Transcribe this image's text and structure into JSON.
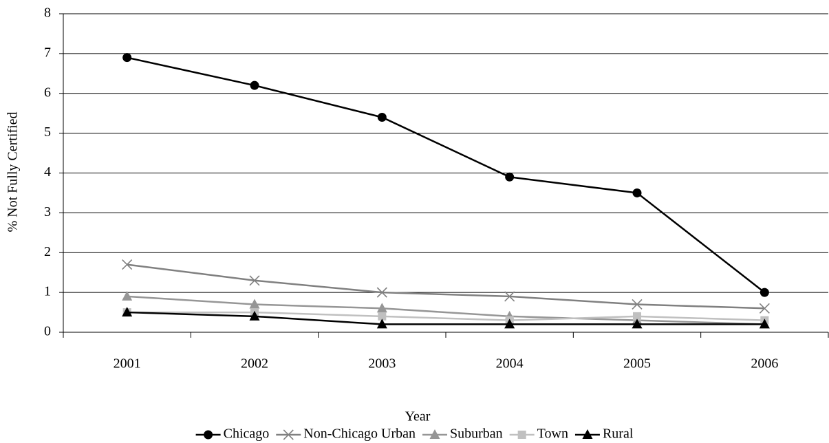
{
  "chart_data": {
    "type": "line",
    "x_label": "Year",
    "y_label": "% Not Fully Certified",
    "categories": [
      "2001",
      "2002",
      "2003",
      "2004",
      "2005",
      "2006"
    ],
    "series": [
      {
        "name": "Chicago",
        "color": "#000000",
        "marker": "circle",
        "values": [
          6.9,
          6.2,
          5.4,
          3.9,
          3.5,
          1.0
        ]
      },
      {
        "name": "Non-Chicago Urban",
        "color": "#808080",
        "marker": "x",
        "values": [
          1.7,
          1.3,
          1.0,
          0.9,
          0.7,
          0.6
        ]
      },
      {
        "name": "Suburban",
        "color": "#969696",
        "marker": "triangle",
        "values": [
          0.9,
          0.7,
          0.6,
          0.4,
          0.3,
          0.2
        ]
      },
      {
        "name": "Town",
        "color": "#c0c0c0",
        "marker": "square",
        "values": [
          0.5,
          0.5,
          0.4,
          0.3,
          0.4,
          0.3
        ]
      },
      {
        "name": "Rural",
        "color": "#000000",
        "marker": "triangle",
        "values": [
          0.5,
          0.4,
          0.2,
          0.2,
          0.2,
          0.2
        ]
      }
    ],
    "ylim": [
      0,
      8
    ],
    "yticks": [
      0,
      1,
      2,
      3,
      4,
      5,
      6,
      7,
      8
    ],
    "grid": true,
    "legend": "bottom"
  }
}
